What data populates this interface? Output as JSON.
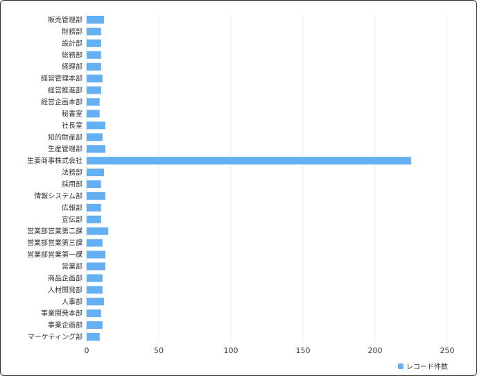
{
  "chart_data": {
    "type": "bar",
    "orientation": "horizontal",
    "categories": [
      "販売管理部",
      "財務部",
      "設計部",
      "総務部",
      "経理部",
      "経営管理本部",
      "経営推進部",
      "経営企画本部",
      "秘書室",
      "社長室",
      "知的財産部",
      "生産管理部",
      "生姜商事株式会社",
      "法務部",
      "採用部",
      "情報システム部",
      "広報部",
      "宣伝部",
      "営業部営業第二課",
      "営業部営業第三課",
      "営業部営業第一課",
      "営業部",
      "商品企画部",
      "人材開発部",
      "人事部",
      "事業開発本部",
      "事業企画部",
      "マーケティング部"
    ],
    "series": [
      {
        "name": "レコード件数",
        "color": "#64b0f2",
        "values": [
          12,
          10,
          10,
          10,
          10,
          11,
          10,
          9,
          9,
          13,
          11,
          13,
          225,
          12,
          10,
          13,
          10,
          10,
          15,
          11,
          13,
          13,
          11,
          11,
          12,
          10,
          11,
          9
        ]
      }
    ],
    "xlim": [
      0,
      250
    ],
    "xticks": [
      "0",
      "50",
      "100",
      "150",
      "200",
      "250"
    ],
    "grid": true,
    "legend_position": "bottom-right"
  }
}
